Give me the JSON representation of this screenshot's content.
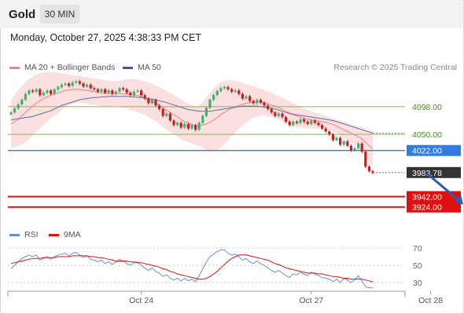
{
  "header": {
    "symbol": "Gold",
    "timeframe": "30 MIN"
  },
  "datetime": "Monday, October 27, 2025 4:38:33 PM CET",
  "legend_main": [
    {
      "label": "MA 20 + Bollinger Bands",
      "color": "#f08080"
    },
    {
      "label": "MA 50",
      "color": "#3a5a99"
    }
  ],
  "legend_rsi": [
    {
      "label": "RSI",
      "color": "#6a8fd8"
    },
    {
      "label": "9MA",
      "color": "#e01010"
    }
  ],
  "copyright": "Research © 2025 Trading Central",
  "colors": {
    "up": "#3cb371",
    "down": "#c81e1e",
    "support": "#e01010",
    "pivot": "#2f7de1",
    "resistance": "#7cc142",
    "current": "#333333",
    "forecast_arrow": "#2a5db0"
  },
  "chart_data": [
    {
      "type": "candlestick",
      "title": "Gold 30 MIN",
      "ylim": [
        3895,
        4155
      ],
      "x_tick_labels": [
        {
          "index": 36,
          "label": "Oct 24"
        },
        {
          "index": 83,
          "label": "Oct 27"
        },
        {
          "index": 116,
          "label": "Oct 28"
        }
      ],
      "levels": [
        {
          "value": 4098.0,
          "label": "4098.00",
          "kind": "resistance"
        },
        {
          "value": 4050.0,
          "label": "4050.00",
          "kind": "resistance"
        },
        {
          "value": 4022.0,
          "label": "4022.00",
          "kind": "pivot"
        },
        {
          "value": 3983.78,
          "label": "3983.78",
          "kind": "current"
        },
        {
          "value": 3942.0,
          "label": "3942.00",
          "kind": "support"
        },
        {
          "value": 3924.0,
          "label": "3924.00",
          "kind": "support"
        }
      ],
      "forecast_arrow": {
        "from_index": 115,
        "from_value": 3982,
        "to_index": 125,
        "to_value": 3928
      },
      "closes": [
        4088,
        4095,
        4102,
        4110,
        4120,
        4126,
        4124,
        4128,
        4118,
        4122,
        4126,
        4120,
        4128,
        4132,
        4136,
        4138,
        4134,
        4140,
        4142,
        4138,
        4133,
        4136,
        4130,
        4128,
        4124,
        4128,
        4122,
        4126,
        4120,
        4124,
        4130,
        4128,
        4122,
        4118,
        4124,
        4126,
        4118,
        4112,
        4104,
        4110,
        4100,
        4094,
        4082,
        4086,
        4074,
        4066,
        4070,
        4062,
        4068,
        4060,
        4066,
        4058,
        4070,
        4082,
        4096,
        4110,
        4118,
        4125,
        4130,
        4132,
        4128,
        4124,
        4126,
        4120,
        4112,
        4116,
        4108,
        4104,
        4110,
        4105,
        4100,
        4094,
        4088,
        4082,
        4086,
        4080,
        4072,
        4066,
        4072,
        4070,
        4076,
        4072,
        4068,
        4074,
        4070,
        4066,
        4060,
        4055,
        4050,
        4040,
        4044,
        4032,
        4038,
        4030,
        4022,
        4026,
        4034,
        4020,
        3994,
        3986,
        3983
      ],
      "bands": {
        "ma20": [
          4068,
          4072,
          4076,
          4082,
          4088,
          4094,
          4099,
          4104,
          4108,
          4112,
          4115,
          4118,
          4120,
          4122,
          4124,
          4126,
          4127,
          4128,
          4128,
          4128,
          4127,
          4126,
          4125,
          4124,
          4123,
          4122,
          4121,
          4121,
          4121,
          4121,
          4121,
          4120,
          4120,
          4119,
          4118,
          4117,
          4115,
          4113,
          4110,
          4107,
          4104,
          4100,
          4096,
          4092,
          4088,
          4084,
          4080,
          4076,
          4072,
          4070,
          4067,
          4065,
          4065,
          4066,
          4068,
          4071,
          4075,
          4079,
          4084,
          4088,
          4092,
          4095,
          4098,
          4100,
          4102,
          4104,
          4105,
          4106,
          4106,
          4106,
          4105,
          4103,
          4101,
          4099,
          4096,
          4093,
          4090,
          4087,
          4084,
          4082,
          4080,
          4078,
          4076,
          4075,
          4074,
          4073,
          4072,
          4071,
          4069,
          4067,
          4064,
          4061,
          4058,
          4055,
          4052,
          4049,
          4046,
          4042,
          4036,
          4030,
          4025
        ],
        "upper": [
          4110,
          4118,
          4126,
          4134,
          4140,
          4146,
          4150,
          4154,
          4156,
          4157,
          4158,
          4158,
          4158,
          4157,
          4156,
          4155,
          4154,
          4153,
          4152,
          4151,
          4150,
          4149,
          4148,
          4147,
          4146,
          4145,
          4144,
          4143,
          4142,
          4142,
          4143,
          4144,
          4145,
          4146,
          4146,
          4145,
          4144,
          4142,
          4140,
          4138,
          4135,
          4132,
          4129,
          4126,
          4122,
          4118,
          4114,
          4110,
          4106,
          4103,
          4100,
          4098,
          4100,
          4106,
          4114,
          4122,
          4130,
          4136,
          4140,
          4143,
          4144,
          4144,
          4143,
          4141,
          4139,
          4137,
          4135,
          4133,
          4131,
          4129,
          4127,
          4125,
          4122,
          4119,
          4116,
          4113,
          4110,
          4107,
          4104,
          4101,
          4098,
          4095,
          4092,
          4090,
          4088,
          4086,
          4084,
          4082,
          4080,
          4078,
          4076,
          4074,
          4072,
          4070,
          4068,
          4066,
          4064,
          4062,
          4060,
          4058,
          4056
        ],
        "lower": [
          4026,
          4028,
          4030,
          4032,
          4036,
          4042,
          4048,
          4054,
          4060,
          4066,
          4072,
          4078,
          4082,
          4087,
          4092,
          4097,
          4100,
          4103,
          4104,
          4105,
          4104,
          4103,
          4102,
          4101,
          4100,
          4099,
          4098,
          4098,
          4099,
          4100,
          4099,
          4096,
          4095,
          4092,
          4090,
          4089,
          4086,
          4084,
          4080,
          4076,
          4073,
          4068,
          4063,
          4058,
          4054,
          4050,
          4046,
          4042,
          4038,
          4037,
          4034,
          4032,
          4030,
          4026,
          4022,
          4020,
          4020,
          4022,
          4028,
          4033,
          4040,
          4046,
          4053,
          4059,
          4065,
          4071,
          4075,
          4079,
          4081,
          4083,
          4083,
          4081,
          4080,
          4079,
          4076,
          4073,
          4070,
          4067,
          4064,
          4063,
          4062,
          4061,
          4060,
          4060,
          4060,
          4060,
          4060,
          4060,
          4058,
          4056,
          4052,
          4048,
          4044,
          4040,
          4036,
          4032,
          4028,
          4022,
          4012,
          4002,
          3994
        ]
      },
      "ma50": [
        4075,
        4076,
        4077,
        4078,
        4079,
        4080,
        4081,
        4083,
        4085,
        4087,
        4089,
        4091,
        4094,
        4097,
        4100,
        4102,
        4104,
        4106,
        4108,
        4110,
        4111,
        4112,
        4113,
        4114,
        4114,
        4115,
        4115,
        4116,
        4116,
        4116,
        4116,
        4116,
        4116,
        4115,
        4115,
        4114,
        4114,
        4113,
        4112,
        4111,
        4110,
        4108,
        4107,
        4105,
        4103,
        4101,
        4099,
        4097,
        4095,
        4093,
        4092,
        4091,
        4090,
        4090,
        4090,
        4090,
        4091,
        4092,
        4093,
        4094,
        4095,
        4096,
        4097,
        4098,
        4099,
        4099,
        4099,
        4099,
        4099,
        4098,
        4097,
        4096,
        4095,
        4094,
        4092,
        4090,
        4088,
        4086,
        4085,
        4084,
        4083,
        4082,
        4081,
        4080,
        4079,
        4078,
        4077,
        4076,
        4075,
        4074,
        4072,
        4070,
        4068,
        4066,
        4064,
        4062,
        4060,
        4058,
        4056,
        4054,
        4052
      ]
    },
    {
      "type": "line",
      "title": "RSI",
      "ylim": [
        20,
        80
      ],
      "y_ticks": [
        30,
        50,
        70
      ],
      "series": [
        {
          "name": "RSI",
          "values": [
            46,
            50,
            54,
            58,
            60,
            62,
            60,
            62,
            56,
            58,
            60,
            57,
            60,
            62,
            63,
            64,
            61,
            64,
            65,
            62,
            59,
            61,
            57,
            56,
            54,
            56,
            52,
            54,
            51,
            54,
            57,
            55,
            52,
            50,
            53,
            54,
            50,
            47,
            44,
            47,
            43,
            41,
            37,
            39,
            35,
            33,
            35,
            32,
            35,
            32,
            34,
            31,
            38,
            46,
            54,
            60,
            63,
            66,
            68,
            68,
            64,
            62,
            63,
            60,
            56,
            58,
            54,
            52,
            55,
            52,
            50,
            47,
            44,
            42,
            44,
            41,
            38,
            36,
            40,
            39,
            42,
            40,
            38,
            42,
            40,
            38,
            36,
            35,
            34,
            31,
            34,
            30,
            35,
            33,
            30,
            33,
            38,
            32,
            25,
            24,
            24
          ]
        },
        {
          "name": "9MA",
          "values": [
            52,
            53,
            54,
            55,
            56,
            57,
            58,
            58,
            58,
            59,
            59,
            59,
            59,
            60,
            60,
            60,
            60,
            61,
            61,
            61,
            61,
            61,
            60,
            60,
            59,
            59,
            58,
            57,
            56,
            55,
            55,
            55,
            55,
            54,
            54,
            53,
            53,
            52,
            51,
            50,
            49,
            48,
            46,
            45,
            43,
            42,
            40,
            39,
            38,
            37,
            36,
            35,
            34,
            34,
            35,
            37,
            40,
            43,
            47,
            51,
            55,
            58,
            60,
            62,
            62,
            62,
            61,
            60,
            59,
            58,
            57,
            56,
            54,
            52,
            51,
            49,
            47,
            46,
            45,
            44,
            43,
            42,
            41,
            41,
            41,
            40,
            40,
            39,
            38,
            37,
            37,
            36,
            35,
            35,
            34,
            34,
            34,
            34,
            33,
            32,
            31
          ]
        }
      ]
    }
  ]
}
